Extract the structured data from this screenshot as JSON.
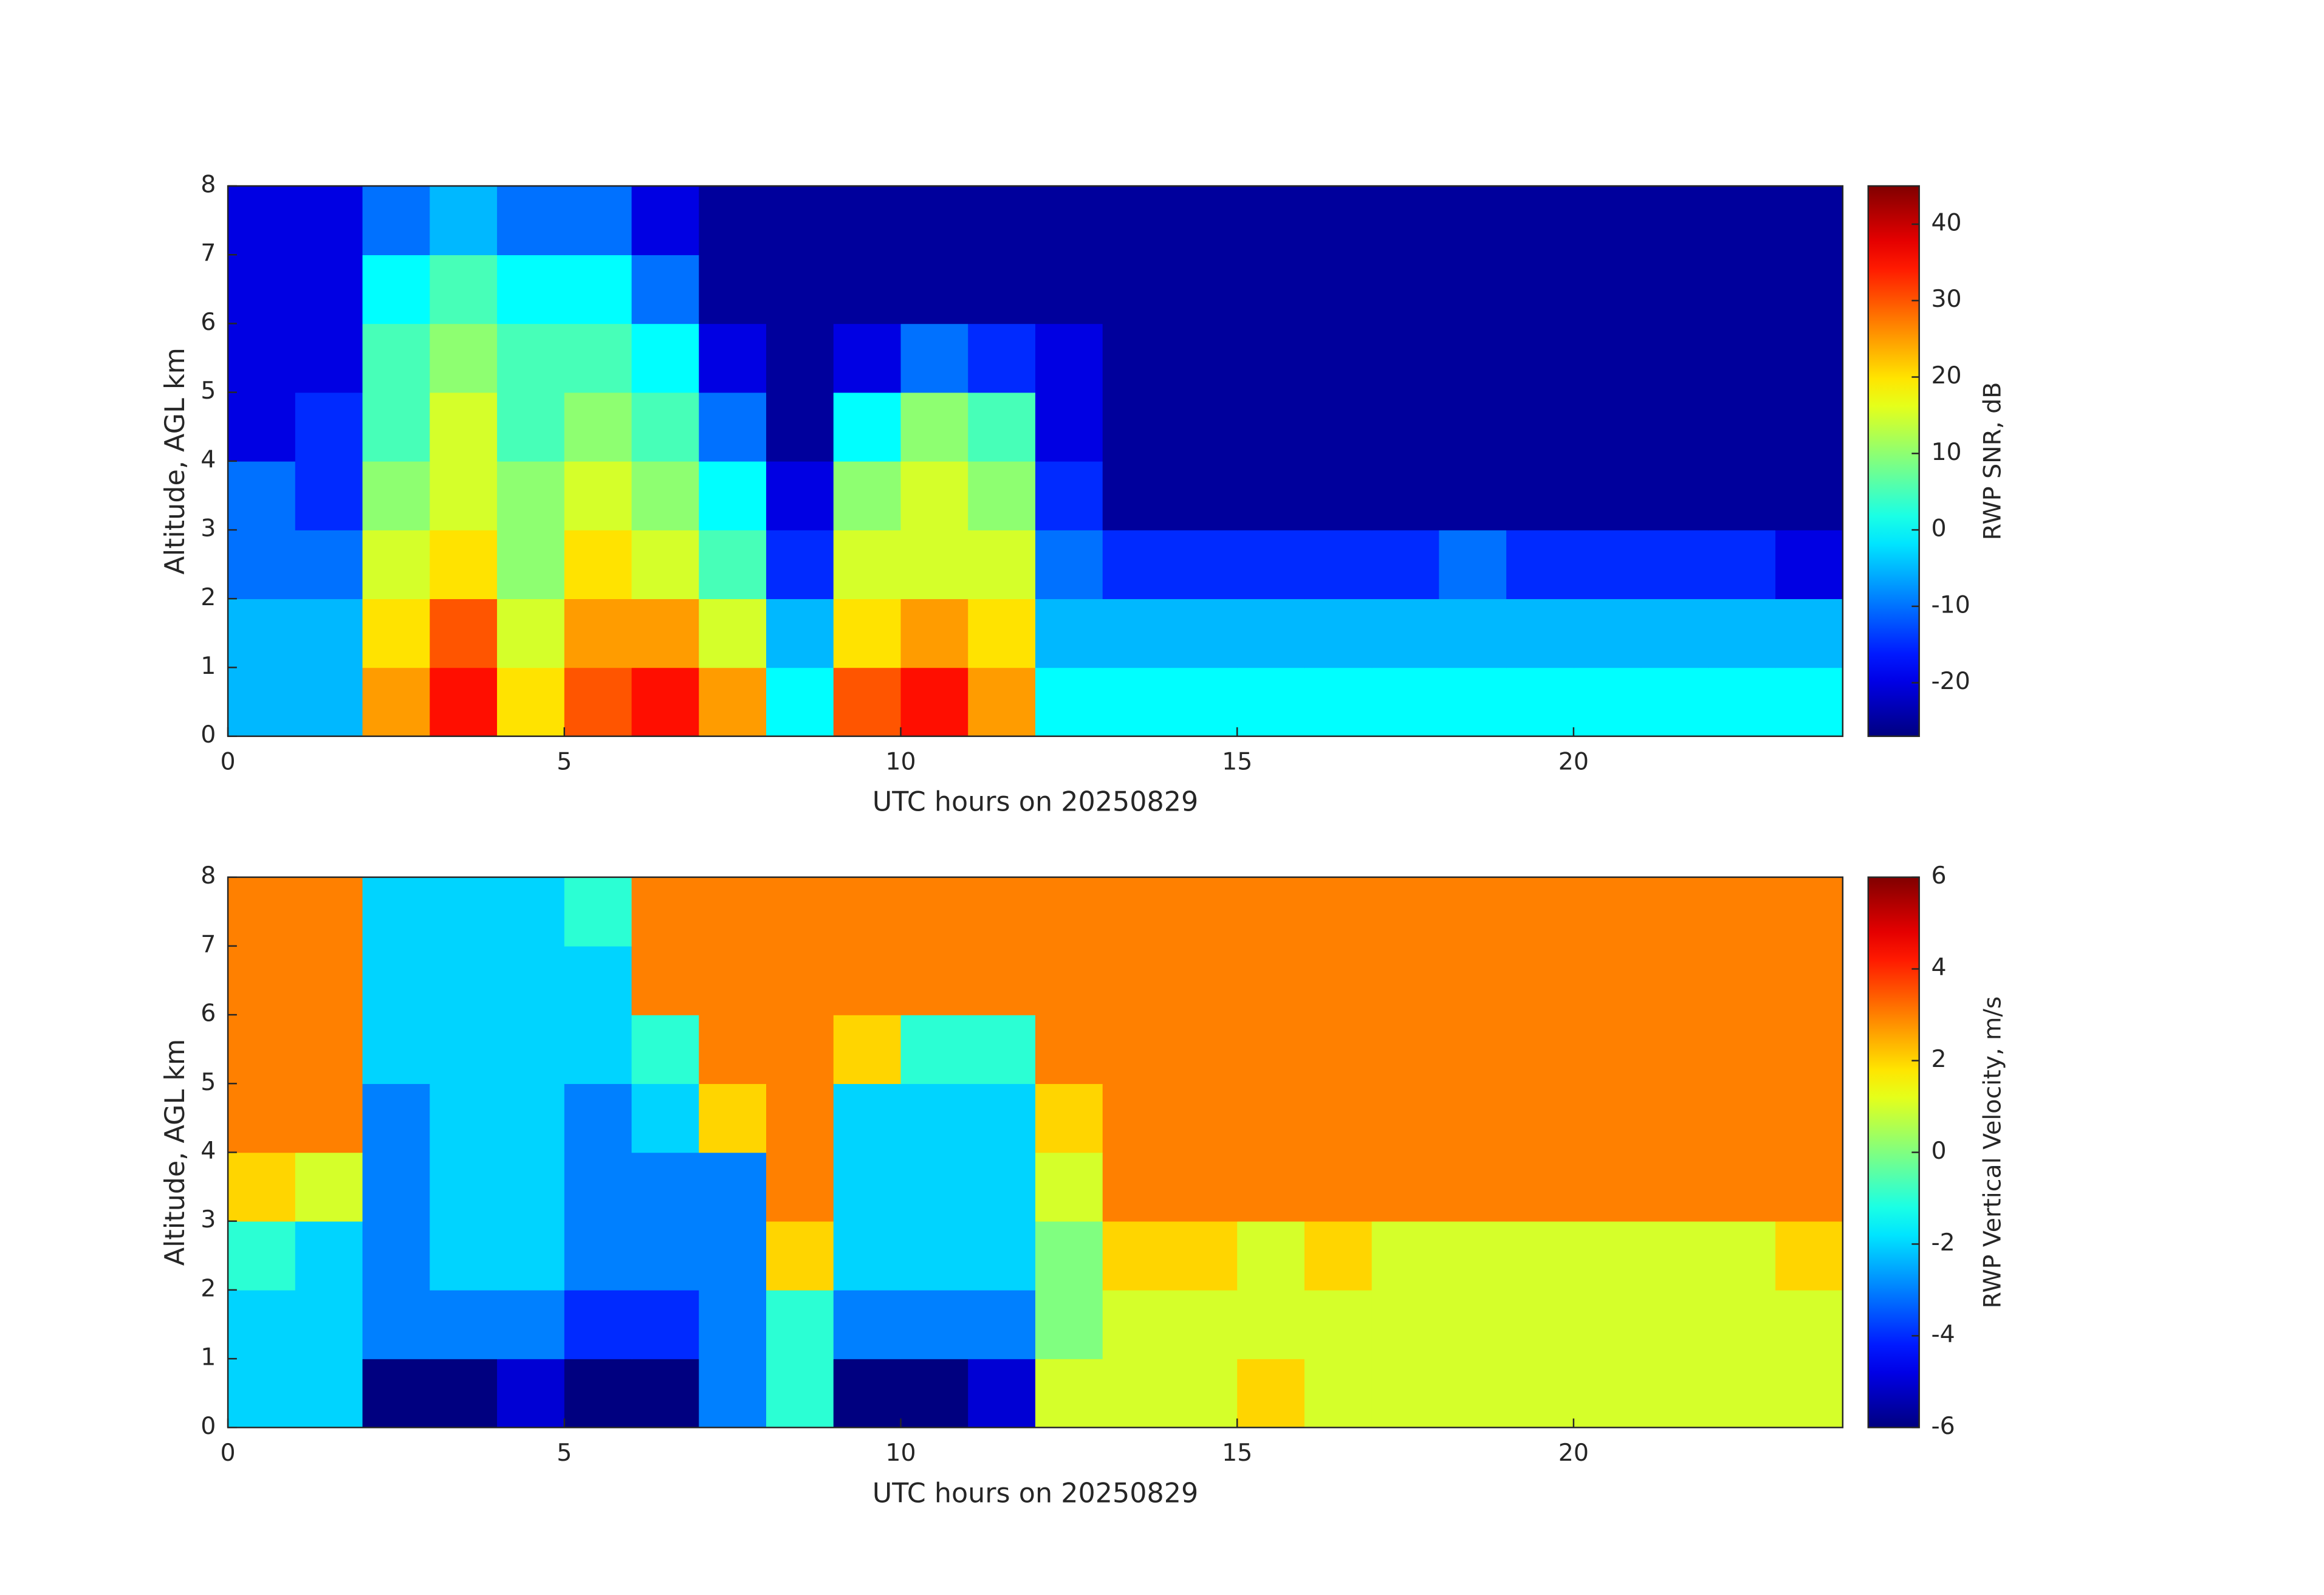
{
  "chart_data": [
    {
      "type": "heatmap",
      "xlabel": "UTC hours on 20250829",
      "ylabel": "Altitude, AGL km",
      "colorbar_label": "RWP SNR, dB",
      "colormap": "jet",
      "x": [
        0,
        1,
        2,
        3,
        4,
        5,
        6,
        7,
        8,
        9,
        10,
        11,
        12,
        13,
        14,
        15,
        16,
        17,
        18,
        19,
        20,
        21,
        22,
        23,
        24
      ],
      "y": [
        0,
        1,
        2,
        3,
        4,
        5,
        6,
        7,
        8
      ],
      "xlim": [
        0,
        24
      ],
      "xticks": [
        0,
        5,
        10,
        15,
        20
      ],
      "ylim": [
        0,
        8
      ],
      "yticks": [
        0,
        1,
        2,
        3,
        4,
        5,
        6,
        7,
        8
      ],
      "clim": [
        -27,
        45
      ],
      "cticks": [
        -20,
        -10,
        0,
        10,
        20,
        30,
        40
      ],
      "values": [
        [
          -5,
          -5,
          25,
          35,
          20,
          30,
          35,
          25,
          0,
          30,
          35,
          25,
          0,
          0,
          0,
          0,
          0,
          0,
          0,
          0,
          0,
          0,
          0,
          0
        ],
        [
          -5,
          -5,
          20,
          30,
          15,
          25,
          25,
          15,
          -5,
          20,
          25,
          20,
          -5,
          -5,
          -5,
          -5,
          -5,
          -5,
          -5,
          -5,
          -5,
          -5,
          -5,
          -5
        ],
        [
          -10,
          -10,
          15,
          20,
          10,
          20,
          15,
          5,
          -15,
          15,
          15,
          15,
          -10,
          -15,
          -15,
          -15,
          -15,
          -15,
          -10,
          -15,
          -15,
          -15,
          -15,
          -20
        ],
        [
          -10,
          -15,
          10,
          15,
          10,
          15,
          10,
          0,
          -20,
          10,
          15,
          10,
          -15,
          -25,
          -25,
          -25,
          -25,
          -25,
          -25,
          -25,
          -25,
          -25,
          -25,
          -25
        ],
        [
          -20,
          -15,
          5,
          15,
          5,
          10,
          5,
          -10,
          -25,
          0,
          10,
          5,
          -20,
          -25,
          -25,
          -25,
          -25,
          -25,
          -25,
          -25,
          -25,
          -25,
          -25,
          -25
        ],
        [
          -20,
          -20,
          5,
          10,
          5,
          5,
          0,
          -20,
          -25,
          -20,
          -10,
          -15,
          -20,
          -25,
          -25,
          -25,
          -25,
          -25,
          -25,
          -25,
          -25,
          -25,
          -25,
          -25
        ],
        [
          -20,
          -20,
          0,
          5,
          0,
          0,
          -10,
          -25,
          -25,
          -25,
          -25,
          -25,
          -25,
          -25,
          -25,
          -25,
          -25,
          -25,
          -25,
          -25,
          -25,
          -25,
          -25,
          -25
        ],
        [
          -20,
          -20,
          -10,
          -5,
          -10,
          -10,
          -20,
          -25,
          -25,
          -25,
          -25,
          -25,
          -25,
          -25,
          -25,
          -25,
          -25,
          -25,
          -25,
          -25,
          -25,
          -25,
          -25,
          -25
        ]
      ]
    },
    {
      "type": "heatmap",
      "xlabel": "UTC hours on 20250829",
      "ylabel": "Altitude, AGL km",
      "colorbar_label": "RWP Vertical Velocity, m/s",
      "colormap": "jet",
      "x": [
        0,
        1,
        2,
        3,
        4,
        5,
        6,
        7,
        8,
        9,
        10,
        11,
        12,
        13,
        14,
        15,
        16,
        17,
        18,
        19,
        20,
        21,
        22,
        23,
        24
      ],
      "y": [
        0,
        1,
        2,
        3,
        4,
        5,
        6,
        7,
        8
      ],
      "xlim": [
        0,
        24
      ],
      "xticks": [
        0,
        5,
        10,
        15,
        20
      ],
      "ylim": [
        0,
        8
      ],
      "yticks": [
        0,
        1,
        2,
        3,
        4,
        5,
        6,
        7,
        8
      ],
      "clim": [
        -6,
        6
      ],
      "cticks": [
        -6,
        -4,
        -2,
        0,
        2,
        4,
        6
      ],
      "values": [
        [
          -2,
          -2,
          -6,
          -6,
          -5,
          -6,
          -6,
          -3,
          -1,
          -6,
          -6,
          -5,
          1,
          1,
          1,
          2,
          1,
          1,
          1,
          1,
          1,
          1,
          1,
          1
        ],
        [
          -2,
          -2,
          -3,
          -3,
          -3,
          -4,
          -4,
          -3,
          -1,
          -3,
          -3,
          -3,
          0,
          1,
          1,
          1,
          1,
          1,
          1,
          1,
          1,
          1,
          1,
          1
        ],
        [
          -1,
          -2,
          -3,
          -2,
          -2,
          -3,
          -3,
          -3,
          2,
          -2,
          -2,
          -2,
          0,
          2,
          2,
          1,
          2,
          1,
          1,
          1,
          1,
          1,
          1,
          2
        ],
        [
          2,
          1,
          -3,
          -2,
          -2,
          -3,
          -3,
          -3,
          3,
          -2,
          -2,
          -2,
          1,
          3,
          3,
          3,
          3,
          3,
          3,
          3,
          3,
          3,
          3,
          3
        ],
        [
          3,
          3,
          -3,
          -2,
          -2,
          -3,
          -2,
          2,
          3,
          -2,
          -2,
          -2,
          2,
          3,
          3,
          3,
          3,
          3,
          3,
          3,
          3,
          3,
          3,
          3
        ],
        [
          3,
          3,
          -2,
          -2,
          -2,
          -2,
          -1,
          3,
          3,
          2,
          -1,
          -1,
          3,
          3,
          3,
          3,
          3,
          3,
          3,
          3,
          3,
          3,
          3,
          3
        ],
        [
          3,
          3,
          -2,
          -2,
          -2,
          -2,
          3,
          3,
          3,
          3,
          3,
          3,
          3,
          3,
          3,
          3,
          3,
          3,
          3,
          3,
          3,
          3,
          3,
          3
        ],
        [
          3,
          3,
          -2,
          -2,
          -2,
          -1,
          3,
          3,
          3,
          3,
          3,
          3,
          3,
          3,
          3,
          3,
          3,
          3,
          3,
          3,
          3,
          3,
          3,
          3
        ]
      ]
    }
  ]
}
